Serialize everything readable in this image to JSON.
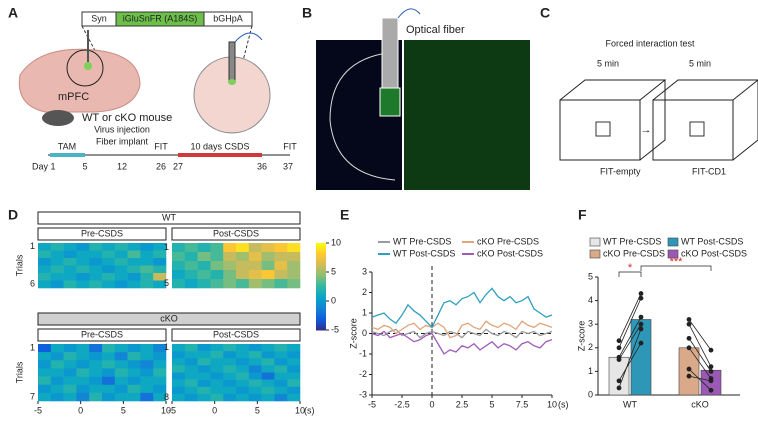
{
  "panel_labels": [
    "A",
    "B",
    "C",
    "D",
    "E",
    "F"
  ],
  "panel_a": {
    "construct": [
      "Syn",
      "iGluSnFR (A184S)",
      "bGHpA"
    ],
    "region": "mPFC",
    "mouse": "WT or cKO mouse",
    "events": [
      "TAM",
      "Virus injection",
      "Fiber implant",
      "FIT",
      "10 days CSDS",
      "FIT"
    ],
    "days": [
      "Day 1",
      "5",
      "12",
      "26",
      "27",
      "36",
      "37"
    ]
  },
  "panel_b": {
    "fiber": "Optical fiber"
  },
  "panel_c": {
    "title": "Forced interaction test",
    "durations": [
      "5 min",
      "5 min"
    ],
    "conditions": [
      "FIT-empty",
      "FIT-CD1"
    ]
  },
  "chart_data": [
    {
      "type": "heatmap",
      "ylabel": "Trials",
      "xlim": [
        -5,
        10
      ],
      "xticks": [
        -5,
        0,
        5,
        10
      ],
      "x_unit": "(s)",
      "clim": [
        -5,
        10
      ],
      "cticks": [
        -5,
        0,
        5,
        10
      ],
      "colormap": [
        "#352a87",
        "#0f5cdd",
        "#1481d6",
        "#06a4ca",
        "#2eb7a4",
        "#87bf77",
        "#d1bb59",
        "#fec832",
        "#f9fb0e"
      ],
      "groups": [
        {
          "name": "WT",
          "panels": [
            {
              "name": "Pre-CSDS",
              "trial_ticks": [
                1,
                6
              ],
              "rows": [
                [
                  1,
                  2,
                  1,
                  0,
                  2,
                  1,
                  2,
                  1,
                  0,
                  1
                ],
                [
                  2,
                  1,
                  0,
                  1,
                  1,
                  2,
                  1,
                  3,
                  1,
                  2
                ],
                [
                  0,
                  1,
                  2,
                  1,
                  0,
                  1,
                  2,
                  1,
                  1,
                  0
                ],
                [
                  1,
                  2,
                  1,
                  2,
                  1,
                  0,
                  1,
                  2,
                  3,
                  2
                ],
                [
                  2,
                  1,
                  1,
                  0,
                  1,
                  2,
                  1,
                  0,
                  2,
                  6
                ],
                [
                  1,
                  0,
                  2,
                  1,
                  2,
                  1,
                  0,
                  1,
                  2,
                  1
                ]
              ]
            },
            {
              "name": "Post-CSDS",
              "trial_ticks": [
                1,
                5
              ],
              "rows": [
                [
                  2,
                  3,
                  2,
                  3,
                  8,
                  9,
                  6,
                  7,
                  8,
                  9
                ],
                [
                  3,
                  2,
                  4,
                  3,
                  6,
                  5,
                  7,
                  5,
                  6,
                  6
                ],
                [
                  2,
                  3,
                  2,
                  4,
                  5,
                  6,
                  6,
                  4,
                  7,
                  5
                ],
                [
                  1,
                  2,
                  3,
                  2,
                  4,
                  6,
                  7,
                  8,
                  6,
                  5
                ],
                [
                  2,
                  1,
                  2,
                  3,
                  4,
                  3,
                  5,
                  4,
                  3,
                  4
                ]
              ]
            }
          ]
        },
        {
          "name": "cKO",
          "panels": [
            {
              "name": "Pre-CSDS",
              "trial_ticks": [
                1,
                7
              ],
              "rows": [
                [
                  -3,
                  1,
                  0,
                  1,
                  -2,
                  2,
                  1,
                  0,
                  1,
                  -1
                ],
                [
                  1,
                  0,
                  2,
                  1,
                  0,
                  1,
                  -1,
                  2,
                  1,
                  0
                ],
                [
                  0,
                  2,
                  1,
                  0,
                  1,
                  2,
                  1,
                  0,
                  -1,
                  1
                ],
                [
                  1,
                  1,
                  0,
                  2,
                  1,
                  0,
                  2,
                  1,
                  0,
                  2
                ],
                [
                  2,
                  0,
                  1,
                  1,
                  0,
                  -2,
                  1,
                  0,
                  1,
                  1
                ],
                [
                  0,
                  1,
                  2,
                  0,
                  1,
                  1,
                  0,
                  2,
                  1,
                  0
                ],
                [
                  1,
                  0,
                  1,
                  -1,
                  2,
                  0,
                  1,
                  1,
                  -2,
                  1
                ]
              ]
            },
            {
              "name": "Post-CSDS",
              "trial_ticks": [
                1,
                8
              ],
              "rows": [
                [
                  1,
                  2,
                  0,
                  1,
                  2,
                  1,
                  0,
                  1,
                  2,
                  1
                ],
                [
                  0,
                  1,
                  1,
                  2,
                  0,
                  1,
                  2,
                  0,
                  1,
                  0
                ],
                [
                  1,
                  0,
                  2,
                  1,
                  1,
                  0,
                  1,
                  2,
                  0,
                  1
                ],
                [
                  2,
                  1,
                  0,
                  1,
                  2,
                  1,
                  -1,
                  1,
                  2,
                  0
                ],
                [
                  0,
                  1,
                  1,
                  0,
                  1,
                  2,
                  0,
                  -2,
                  1,
                  1
                ],
                [
                  1,
                  2,
                  0,
                  1,
                  0,
                  1,
                  2,
                  1,
                  0,
                  2
                ],
                [
                  0,
                  1,
                  2,
                  1,
                  1,
                  0,
                  1,
                  2,
                  1,
                  0
                ],
                [
                  1,
                  0,
                  1,
                  2,
                  0,
                  1,
                  0,
                  1,
                  -1,
                  1
                ]
              ]
            }
          ]
        }
      ]
    },
    {
      "type": "line",
      "ylabel": "Z-score",
      "x_unit": "(s)",
      "xlim": [
        -5,
        10
      ],
      "xticks": [
        -5,
        -2.5,
        0,
        2.5,
        5,
        7.5,
        10
      ],
      "ylim": [
        -3,
        3
      ],
      "yticks": [
        -3,
        -2,
        -1,
        0,
        1,
        2,
        3
      ],
      "x": [
        -5,
        -4.5,
        -4,
        -3.5,
        -3,
        -2.5,
        -2,
        -1.5,
        -1,
        -0.5,
        0,
        0.5,
        1,
        1.5,
        2,
        2.5,
        3,
        3.5,
        4,
        4.5,
        5,
        5.5,
        6,
        6.5,
        7,
        7.5,
        8,
        8.5,
        9,
        9.5,
        10
      ],
      "series": [
        {
          "name": "WT Pre-CSDS",
          "color": "#9a9a9a",
          "values": [
            0.1,
            0.0,
            -0.1,
            0.1,
            0.2,
            -0.1,
            0.0,
            0.1,
            -0.2,
            0.0,
            0.1,
            0.0,
            -0.1,
            0.1,
            0.0,
            -0.2,
            0.1,
            0.0,
            -0.1,
            0.2,
            0.0,
            -0.1,
            0.1,
            0.0,
            -0.2,
            0.1,
            0.0,
            0.1,
            -0.1,
            0.0,
            0.1
          ]
        },
        {
          "name": "cKO Pre-CSDS",
          "color": "#e0a57a",
          "values": [
            0.3,
            0.2,
            0.4,
            0.3,
            0.0,
            0.2,
            0.4,
            0.5,
            0.2,
            0.4,
            0.3,
            0.5,
            0.3,
            -0.2,
            -0.1,
            0.4,
            0.5,
            0.3,
            0.2,
            0.6,
            0.4,
            0.3,
            0.5,
            0.4,
            0.2,
            0.6,
            0.4,
            0.3,
            0.5,
            0.4,
            0.3
          ]
        },
        {
          "name": "WT Post-CSDS",
          "color": "#2e9fc0",
          "values": [
            0.8,
            0.9,
            1.0,
            0.7,
            0.5,
            0.9,
            1.4,
            1.1,
            0.9,
            0.6,
            0.3,
            0.9,
            1.5,
            1.6,
            1.4,
            1.7,
            1.8,
            2.0,
            1.5,
            1.9,
            2.2,
            1.8,
            1.6,
            1.8,
            1.5,
            1.6,
            1.8,
            1.2,
            1.0,
            0.8,
            0.9
          ]
        },
        {
          "name": "cKO Post-CSDS",
          "color": "#a05cb8",
          "values": [
            0.0,
            -0.1,
            0.1,
            -0.2,
            -0.1,
            0.0,
            -0.2,
            -0.4,
            -0.3,
            -0.1,
            0.0,
            -0.5,
            -1.0,
            -0.8,
            -0.9,
            -0.6,
            -0.7,
            -0.5,
            -0.8,
            -0.6,
            -0.4,
            -0.7,
            -0.5,
            -0.6,
            -0.8,
            -0.5,
            -0.4,
            -0.6,
            -0.7,
            -0.4,
            -0.3
          ]
        }
      ]
    },
    {
      "type": "bar",
      "ylabel": "Z-score",
      "categories": [
        "WT",
        "cKO"
      ],
      "ylim": [
        0,
        5
      ],
      "yticks": [
        0,
        1,
        2,
        3,
        4,
        5
      ],
      "significance": [
        "*",
        "***"
      ],
      "series": [
        {
          "name": "WT Pre-CSDS",
          "color": "#e6e6e6",
          "values": [
            1.6,
            null
          ],
          "points": [
            2.3,
            2.0,
            1.6,
            1.5,
            0.6,
            0.3
          ]
        },
        {
          "name": "WT Post-CSDS",
          "color": "#2e97b7",
          "values": [
            3.2,
            null
          ],
          "points": [
            4.3,
            4.1,
            3.3,
            3.0,
            2.2,
            2.8
          ]
        },
        {
          "name": "cKO Pre-CSDS",
          "color": "#d9a98a",
          "values": [
            null,
            2.0
          ],
          "points": [
            3.2,
            3.0,
            2.4,
            2.0,
            1.1,
            0.8
          ]
        },
        {
          "name": "cKO Post-CSDS",
          "color": "#9b59b6",
          "values": [
            null,
            1.05
          ],
          "points": [
            1.9,
            1.2,
            1.0,
            0.7,
            0.2,
            0.6
          ]
        }
      ]
    }
  ]
}
